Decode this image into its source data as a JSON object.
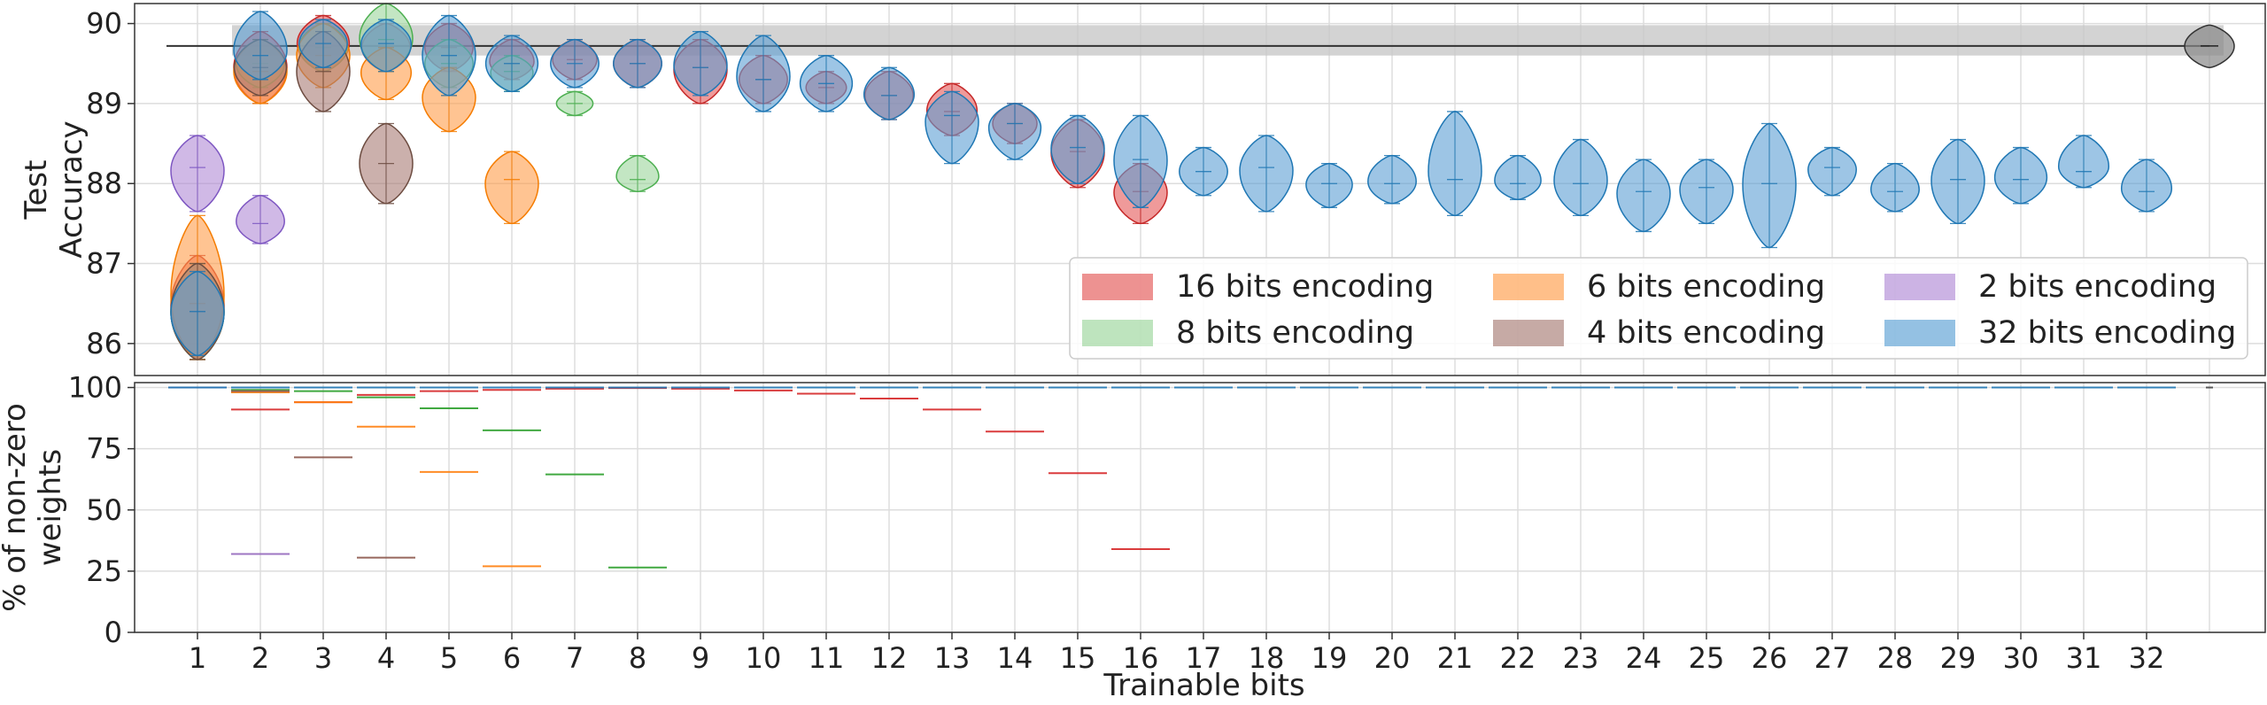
{
  "chart_data": [
    {
      "type": "violin",
      "panel": "accuracy",
      "ylabel_lines": [
        "Test",
        "Accuracy"
      ],
      "ylim": [
        85.6,
        90.25
      ],
      "yticks": [
        86,
        87,
        88,
        89,
        90
      ],
      "grid": true,
      "baseline": {
        "value": 89.72,
        "band": [
          89.6,
          89.98
        ],
        "full_precision_violin": {
          "center": 89.72,
          "min": 89.45,
          "max": 89.98
        }
      },
      "legend": {
        "placement": "lower-right",
        "entries": [
          {
            "label": "16 bits encoding",
            "color": "#e45756"
          },
          {
            "label": "6 bits encoding",
            "color": "#ff9d4a"
          },
          {
            "label": "2 bits encoding",
            "color": "#b18ad6"
          },
          {
            "label": "8 bits encoding",
            "color": "#9bd59b"
          },
          {
            "label": "4 bits encoding",
            "color": "#a87c74"
          },
          {
            "label": "32 bits encoding",
            "color": "#5b9fd4"
          }
        ]
      },
      "series": [
        {
          "name": "16 bits encoding",
          "color": "#e45756",
          "points": [
            {
              "x": 1,
              "center": 86.5,
              "min": 85.8,
              "max": 87.1
            },
            {
              "x": 2,
              "center": 89.45,
              "min": 89.0,
              "max": 89.9
            },
            {
              "x": 3,
              "center": 89.75,
              "min": 89.4,
              "max": 90.1
            },
            {
              "x": 4,
              "center": 89.7,
              "min": 89.4,
              "max": 90.0
            },
            {
              "x": 5,
              "center": 89.7,
              "min": 89.4,
              "max": 90.0
            },
            {
              "x": 6,
              "center": 89.5,
              "min": 89.3,
              "max": 89.8
            },
            {
              "x": 7,
              "center": 89.55,
              "min": 89.3,
              "max": 89.8
            },
            {
              "x": 8,
              "center": 89.5,
              "min": 89.2,
              "max": 89.8
            },
            {
              "x": 9,
              "center": 89.45,
              "min": 89.0,
              "max": 89.8
            },
            {
              "x": 10,
              "center": 89.3,
              "min": 89.0,
              "max": 89.6
            },
            {
              "x": 11,
              "center": 89.2,
              "min": 89.0,
              "max": 89.4
            },
            {
              "x": 12,
              "center": 89.1,
              "min": 88.8,
              "max": 89.4
            },
            {
              "x": 13,
              "center": 88.9,
              "min": 88.6,
              "max": 89.25
            },
            {
              "x": 14,
              "center": 88.75,
              "min": 88.5,
              "max": 89.0
            },
            {
              "x": 15,
              "center": 88.4,
              "min": 87.95,
              "max": 88.8
            },
            {
              "x": 16,
              "center": 87.9,
              "min": 87.5,
              "max": 88.25
            }
          ]
        },
        {
          "name": "8 bits encoding",
          "color": "#9bd59b",
          "points": [
            {
              "x": 1,
              "center": 86.4,
              "min": 85.8,
              "max": 87.0
            },
            {
              "x": 2,
              "center": 89.5,
              "min": 89.2,
              "max": 89.8
            },
            {
              "x": 3,
              "center": 89.7,
              "min": 89.4,
              "max": 90.0
            },
            {
              "x": 4,
              "center": 89.8,
              "min": 89.4,
              "max": 90.25
            },
            {
              "x": 5,
              "center": 89.5,
              "min": 89.2,
              "max": 89.8
            },
            {
              "x": 6,
              "center": 89.4,
              "min": 89.15,
              "max": 89.6
            },
            {
              "x": 7,
              "center": 89.0,
              "min": 88.85,
              "max": 89.15
            },
            {
              "x": 8,
              "center": 88.05,
              "min": 87.9,
              "max": 88.35
            }
          ]
        },
        {
          "name": "6 bits encoding",
          "color": "#ff9d4a",
          "points": [
            {
              "x": 1,
              "center": 86.5,
              "min": 85.8,
              "max": 87.6
            },
            {
              "x": 2,
              "center": 89.4,
              "min": 89.0,
              "max": 89.8
            },
            {
              "x": 3,
              "center": 89.6,
              "min": 89.2,
              "max": 90.0
            },
            {
              "x": 4,
              "center": 89.4,
              "min": 89.05,
              "max": 89.7
            },
            {
              "x": 5,
              "center": 89.1,
              "min": 88.65,
              "max": 89.45
            },
            {
              "x": 6,
              "center": 88.05,
              "min": 87.5,
              "max": 88.4
            }
          ]
        },
        {
          "name": "4 bits encoding",
          "color": "#a87c74",
          "points": [
            {
              "x": 1,
              "center": 86.4,
              "min": 85.8,
              "max": 87.0
            },
            {
              "x": 2,
              "center": 89.45,
              "min": 89.1,
              "max": 89.8
            },
            {
              "x": 3,
              "center": 89.4,
              "min": 88.9,
              "max": 89.9
            },
            {
              "x": 4,
              "center": 88.25,
              "min": 87.75,
              "max": 88.75
            }
          ]
        },
        {
          "name": "2 bits encoding",
          "color": "#b18ad6",
          "points": [
            {
              "x": 1,
              "center": 88.2,
              "min": 87.65,
              "max": 88.6
            },
            {
              "x": 2,
              "center": 87.5,
              "min": 87.25,
              "max": 87.85
            }
          ]
        },
        {
          "name": "32 bits encoding",
          "color": "#5b9fd4",
          "points": [
            {
              "x": 1,
              "center": 86.4,
              "min": 85.85,
              "max": 86.9
            },
            {
              "x": 2,
              "center": 89.6,
              "min": 89.3,
              "max": 90.15
            },
            {
              "x": 3,
              "center": 89.75,
              "min": 89.45,
              "max": 90.05
            },
            {
              "x": 4,
              "center": 89.75,
              "min": 89.4,
              "max": 90.05
            },
            {
              "x": 5,
              "center": 89.6,
              "min": 89.1,
              "max": 90.1
            },
            {
              "x": 6,
              "center": 89.5,
              "min": 89.15,
              "max": 89.85
            },
            {
              "x": 7,
              "center": 89.5,
              "min": 89.2,
              "max": 89.8
            },
            {
              "x": 8,
              "center": 89.5,
              "min": 89.2,
              "max": 89.8
            },
            {
              "x": 9,
              "center": 89.45,
              "min": 89.1,
              "max": 89.9
            },
            {
              "x": 10,
              "center": 89.3,
              "min": 88.9,
              "max": 89.85
            },
            {
              "x": 11,
              "center": 89.25,
              "min": 88.9,
              "max": 89.6
            },
            {
              "x": 12,
              "center": 89.1,
              "min": 88.8,
              "max": 89.45
            },
            {
              "x": 13,
              "center": 88.85,
              "min": 88.25,
              "max": 89.15
            },
            {
              "x": 14,
              "center": 88.75,
              "min": 88.3,
              "max": 89.0
            },
            {
              "x": 15,
              "center": 88.45,
              "min": 88.0,
              "max": 88.85
            },
            {
              "x": 16,
              "center": 88.3,
              "min": 87.7,
              "max": 88.85
            },
            {
              "x": 17,
              "center": 88.15,
              "min": 87.85,
              "max": 88.45
            },
            {
              "x": 18,
              "center": 88.2,
              "min": 87.65,
              "max": 88.6
            },
            {
              "x": 19,
              "center": 88.0,
              "min": 87.7,
              "max": 88.25
            },
            {
              "x": 20,
              "center": 88.0,
              "min": 87.75,
              "max": 88.35
            },
            {
              "x": 21,
              "center": 88.05,
              "min": 87.6,
              "max": 88.9
            },
            {
              "x": 22,
              "center": 88.0,
              "min": 87.8,
              "max": 88.35
            },
            {
              "x": 23,
              "center": 88.0,
              "min": 87.6,
              "max": 88.55
            },
            {
              "x": 24,
              "center": 87.9,
              "min": 87.4,
              "max": 88.3
            },
            {
              "x": 25,
              "center": 87.95,
              "min": 87.5,
              "max": 88.3
            },
            {
              "x": 26,
              "center": 88.0,
              "min": 87.2,
              "max": 88.75
            },
            {
              "x": 27,
              "center": 88.2,
              "min": 87.85,
              "max": 88.45
            },
            {
              "x": 28,
              "center": 87.9,
              "min": 87.65,
              "max": 88.25
            },
            {
              "x": 29,
              "center": 88.05,
              "min": 87.5,
              "max": 88.55
            },
            {
              "x": 30,
              "center": 88.05,
              "min": 87.75,
              "max": 88.45
            },
            {
              "x": 31,
              "center": 88.15,
              "min": 87.95,
              "max": 88.6
            },
            {
              "x": 32,
              "center": 87.9,
              "min": 87.65,
              "max": 88.3
            }
          ]
        }
      ]
    },
    {
      "type": "violin",
      "panel": "sparsity",
      "ylabel_lines": [
        "% of non-zero",
        "weights"
      ],
      "ylim": [
        0,
        102
      ],
      "yticks": [
        0,
        25,
        50,
        75,
        100
      ],
      "grid": true,
      "xlabel": "Trainable bits",
      "xticks": [
        "1",
        "2",
        "3",
        "4",
        "5",
        "6",
        "7",
        "8",
        "9",
        "10",
        "11",
        "12",
        "13",
        "14",
        "15",
        "16",
        "17",
        "18",
        "19",
        "20",
        "21",
        "22",
        "23",
        "24",
        "25",
        "26",
        "27",
        "28",
        "29",
        "30",
        "31",
        "32"
      ],
      "series": [
        {
          "name": "16 bits encoding",
          "color": "#d62728",
          "values": [
            100,
            91,
            94,
            97,
            98.5,
            99,
            99.5,
            99.8,
            99.5,
            98.8,
            97.5,
            95.5,
            91,
            82,
            65,
            34
          ]
        },
        {
          "name": "8 bits encoding",
          "color": "#2ca02c",
          "values": [
            100,
            99,
            98.5,
            96,
            91.5,
            82.5,
            64.5,
            26.5
          ]
        },
        {
          "name": "6 bits encoding",
          "color": "#ff7f0e",
          "values": [
            100,
            98,
            94,
            84,
            65.5,
            27
          ]
        },
        {
          "name": "4 bits encoding",
          "color": "#8c564b",
          "values": [
            100,
            98.5,
            71.5,
            30.5
          ]
        },
        {
          "name": "2 bits encoding",
          "color": "#9467bd",
          "values": [
            100,
            32
          ]
        },
        {
          "name": "32 bits encoding",
          "color": "#1f77b4",
          "values": [
            100,
            100,
            100,
            100,
            100,
            100,
            100,
            100,
            100,
            100,
            100,
            100,
            100,
            100,
            100,
            100,
            100,
            100,
            100,
            100,
            100,
            100,
            100,
            100,
            100,
            100,
            100,
            100,
            100,
            100,
            100,
            100
          ]
        }
      ],
      "baseline_value": 100
    }
  ]
}
